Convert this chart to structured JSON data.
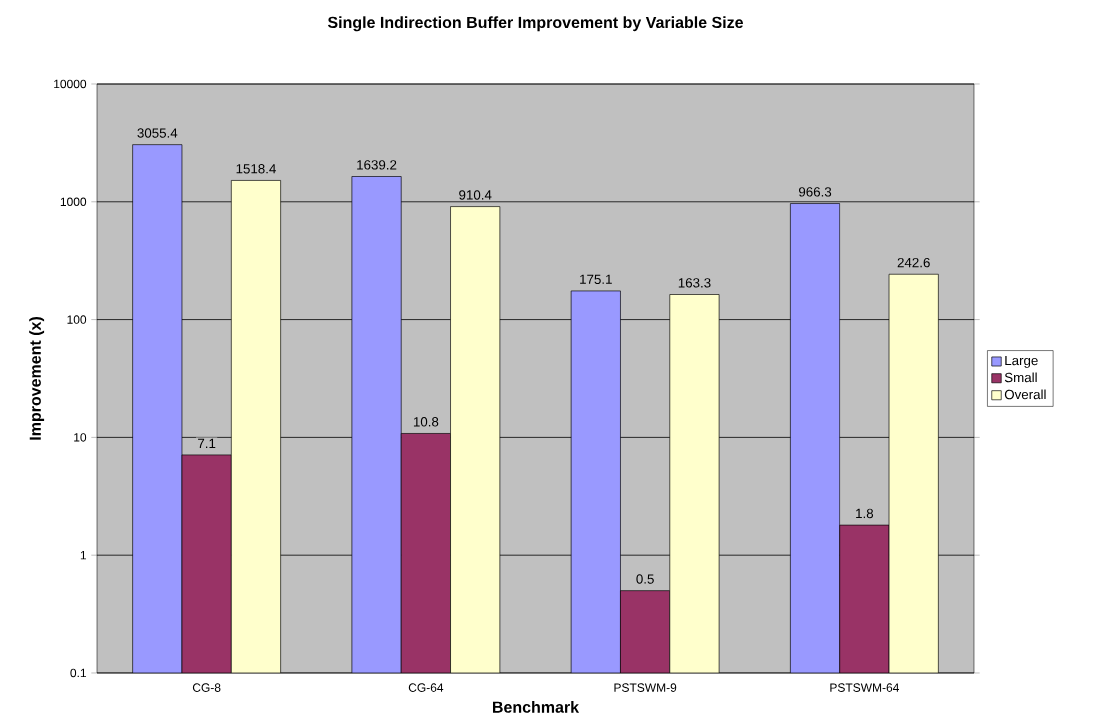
{
  "chart_data": {
    "type": "bar",
    "title": "Single Indirection Buffer Improvement by Variable Size",
    "xlabel": "Benchmark",
    "ylabel": "Improvement (x)",
    "categories": [
      "CG-8",
      "CG-64",
      "PSTSWM-9",
      "PSTSWM-64"
    ],
    "series": [
      {
        "name": "Large",
        "color": "#9999ff",
        "values": [
          3055.4,
          1639.2,
          175.1,
          966.3
        ]
      },
      {
        "name": "Small",
        "color": "#993366",
        "values": [
          7.1,
          10.8,
          0.5,
          1.8
        ]
      },
      {
        "name": "Overall",
        "color": "#ffffcc",
        "values": [
          1518.4,
          910.4,
          163.3,
          242.6
        ]
      }
    ],
    "log": "y",
    "ylim": [
      0.1,
      10000
    ],
    "yticks": [
      0.1,
      1,
      10,
      100,
      1000,
      10000
    ],
    "grid": "y",
    "legend": "right",
    "data_labels": true
  }
}
